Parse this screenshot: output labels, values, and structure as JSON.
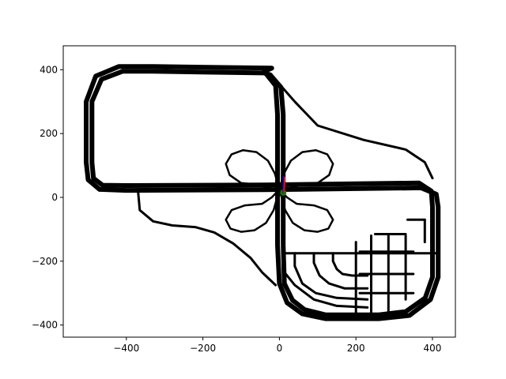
{
  "chart_data": {
    "type": "scatter",
    "title": "",
    "xlabel": "",
    "ylabel": "",
    "xlim": [
      -565,
      460
    ],
    "ylim": [
      -438,
      475
    ],
    "grid": false,
    "x_ticks": [
      -400,
      -200,
      0,
      200,
      400
    ],
    "y_ticks": [
      -400,
      -200,
      0,
      200,
      400
    ],
    "x_tick_labels": [
      "−400",
      "−200",
      "0",
      "200",
      "400"
    ],
    "y_tick_labels": [
      "−400",
      "−200",
      "0",
      "200",
      "400"
    ],
    "series": [
      {
        "kind": "track",
        "color": "#000000",
        "outer_loop": [
          [
            -20,
            405
          ],
          [
            -330,
            410
          ],
          [
            -420,
            410
          ],
          [
            -480,
            380
          ],
          [
            -505,
            300
          ],
          [
            -505,
            110
          ],
          [
            -500,
            55
          ],
          [
            -470,
            25
          ],
          [
            -400,
            22
          ],
          [
            -40,
            24
          ],
          [
            370,
            30
          ],
          [
            410,
            10
          ],
          [
            415,
            -30
          ],
          [
            415,
            -250
          ],
          [
            395,
            -320
          ],
          [
            340,
            -370
          ],
          [
            260,
            -380
          ],
          [
            120,
            -380
          ],
          [
            60,
            -365
          ],
          [
            20,
            -330
          ],
          [
            0,
            -270
          ],
          [
            -5,
            -150
          ],
          [
            -5,
            260
          ],
          [
            -10,
            350
          ],
          [
            -40,
            395
          ],
          [
            -20,
            405
          ]
        ],
        "inner_loop": [
          [
            -40,
            390
          ],
          [
            -330,
            395
          ],
          [
            -410,
            395
          ],
          [
            -465,
            370
          ],
          [
            -490,
            300
          ],
          [
            -490,
            110
          ],
          [
            -486,
            60
          ],
          [
            -462,
            38
          ],
          [
            -400,
            37
          ],
          [
            -40,
            39
          ],
          [
            365,
            45
          ],
          [
            397,
            20
          ],
          [
            400,
            -30
          ],
          [
            400,
            -250
          ],
          [
            381,
            -315
          ],
          [
            330,
            -358
          ],
          [
            260,
            -368
          ],
          [
            120,
            -368
          ],
          [
            66,
            -352
          ],
          [
            34,
            -322
          ],
          [
            13,
            -270
          ],
          [
            10,
            -150
          ],
          [
            10,
            260
          ],
          [
            4,
            345
          ],
          [
            -24,
            384
          ],
          [
            -40,
            390
          ]
        ],
        "upper_right_curve": [
          [
            0,
            355
          ],
          [
            40,
            300
          ],
          [
            100,
            225
          ],
          [
            220,
            180
          ],
          [
            330,
            150
          ],
          [
            380,
            110
          ],
          [
            400,
            60
          ]
        ],
        "lower_left_curve": [
          [
            -370,
            25
          ],
          [
            -365,
            -40
          ],
          [
            -330,
            -75
          ],
          [
            -280,
            -88
          ],
          [
            -220,
            -93
          ],
          [
            -170,
            -110
          ],
          [
            -120,
            -145
          ],
          [
            -75,
            -190
          ],
          [
            -45,
            -235
          ],
          [
            -10,
            -275
          ]
        ],
        "horizontal_segment": [
          [
            10,
            -175
          ],
          [
            410,
            -175
          ]
        ],
        "inner_arcs": [
          [
            [
              140,
              -175
            ],
            [
              140,
              -200
            ],
            [
              150,
              -225
            ],
            [
              165,
              -240
            ],
            [
              190,
              -245
            ],
            [
              230,
              -245
            ]
          ],
          [
            [
              90,
              -175
            ],
            [
              90,
              -205
            ],
            [
              105,
              -245
            ],
            [
              130,
              -270
            ],
            [
              170,
              -285
            ],
            [
              230,
              -285
            ]
          ],
          [
            [
              40,
              -175
            ],
            [
              40,
              -215
            ],
            [
              60,
              -270
            ],
            [
              95,
              -300
            ],
            [
              150,
              -315
            ],
            [
              230,
              -320
            ]
          ],
          [
            [
              10,
              -230
            ],
            [
              40,
              -275
            ],
            [
              90,
              -320
            ],
            [
              150,
              -340
            ],
            [
              230,
              -345
            ]
          ]
        ],
        "grid_lines": [
          [
            [
              240,
              -120
            ],
            [
              240,
              -370
            ]
          ],
          [
            [
              250,
              -115
            ],
            [
              330,
              -115
            ]
          ],
          [
            [
              200,
              -140
            ],
            [
              200,
              -370
            ]
          ],
          [
            [
              285,
              -120
            ],
            [
              285,
              -370
            ]
          ],
          [
            [
              330,
              -120
            ],
            [
              330,
              -320
            ]
          ],
          [
            [
              210,
              -170
            ],
            [
              350,
              -170
            ]
          ],
          [
            [
              210,
              -240
            ],
            [
              350,
              -240
            ]
          ],
          [
            [
              210,
              -300
            ],
            [
              350,
              -300
            ]
          ],
          [
            [
              335,
              -70
            ],
            [
              380,
              -70
            ]
          ],
          [
            [
              380,
              -70
            ],
            [
              380,
              -140
            ]
          ]
        ],
        "clover": [
          [
            [
              0,
              25
            ],
            [
              -30,
              30
            ],
            [
              -60,
              40
            ],
            [
              -100,
              45
            ],
            [
              -130,
              70
            ],
            [
              -140,
              105
            ],
            [
              -125,
              135
            ],
            [
              -95,
              148
            ],
            [
              -60,
              142
            ],
            [
              -30,
              115
            ],
            [
              -12,
              75
            ],
            [
              0,
              25
            ]
          ],
          [
            [
              0,
              25
            ],
            [
              30,
              30
            ],
            [
              60,
              40
            ],
            [
              100,
              45
            ],
            [
              130,
              70
            ],
            [
              140,
              105
            ],
            [
              125,
              135
            ],
            [
              95,
              148
            ],
            [
              60,
              142
            ],
            [
              30,
              115
            ],
            [
              12,
              75
            ],
            [
              0,
              25
            ]
          ],
          [
            [
              0,
              25
            ],
            [
              -20,
              0
            ],
            [
              -45,
              -20
            ],
            [
              -90,
              -25
            ],
            [
              -125,
              -40
            ],
            [
              -140,
              -70
            ],
            [
              -128,
              -98
            ],
            [
              -100,
              -108
            ],
            [
              -65,
              -103
            ],
            [
              -35,
              -80
            ],
            [
              -15,
              -40
            ],
            [
              0,
              25
            ]
          ],
          [
            [
              0,
              25
            ],
            [
              20,
              0
            ],
            [
              45,
              -20
            ],
            [
              90,
              -25
            ],
            [
              125,
              -40
            ],
            [
              140,
              -70
            ],
            [
              128,
              -98
            ],
            [
              100,
              -108
            ],
            [
              65,
              -103
            ],
            [
              35,
              -80
            ],
            [
              15,
              -40
            ],
            [
              0,
              25
            ]
          ]
        ]
      },
      {
        "kind": "marker",
        "color": "#008000",
        "points": [
          [
            10,
            15
          ]
        ]
      },
      {
        "kind": "heading",
        "color": "#0000ff",
        "points": [
          [
            10,
            15
          ],
          [
            12,
            65
          ]
        ]
      },
      {
        "kind": "heading",
        "color": "#ff0000",
        "points": [
          [
            12,
            15
          ],
          [
            14,
            62
          ]
        ]
      }
    ]
  }
}
